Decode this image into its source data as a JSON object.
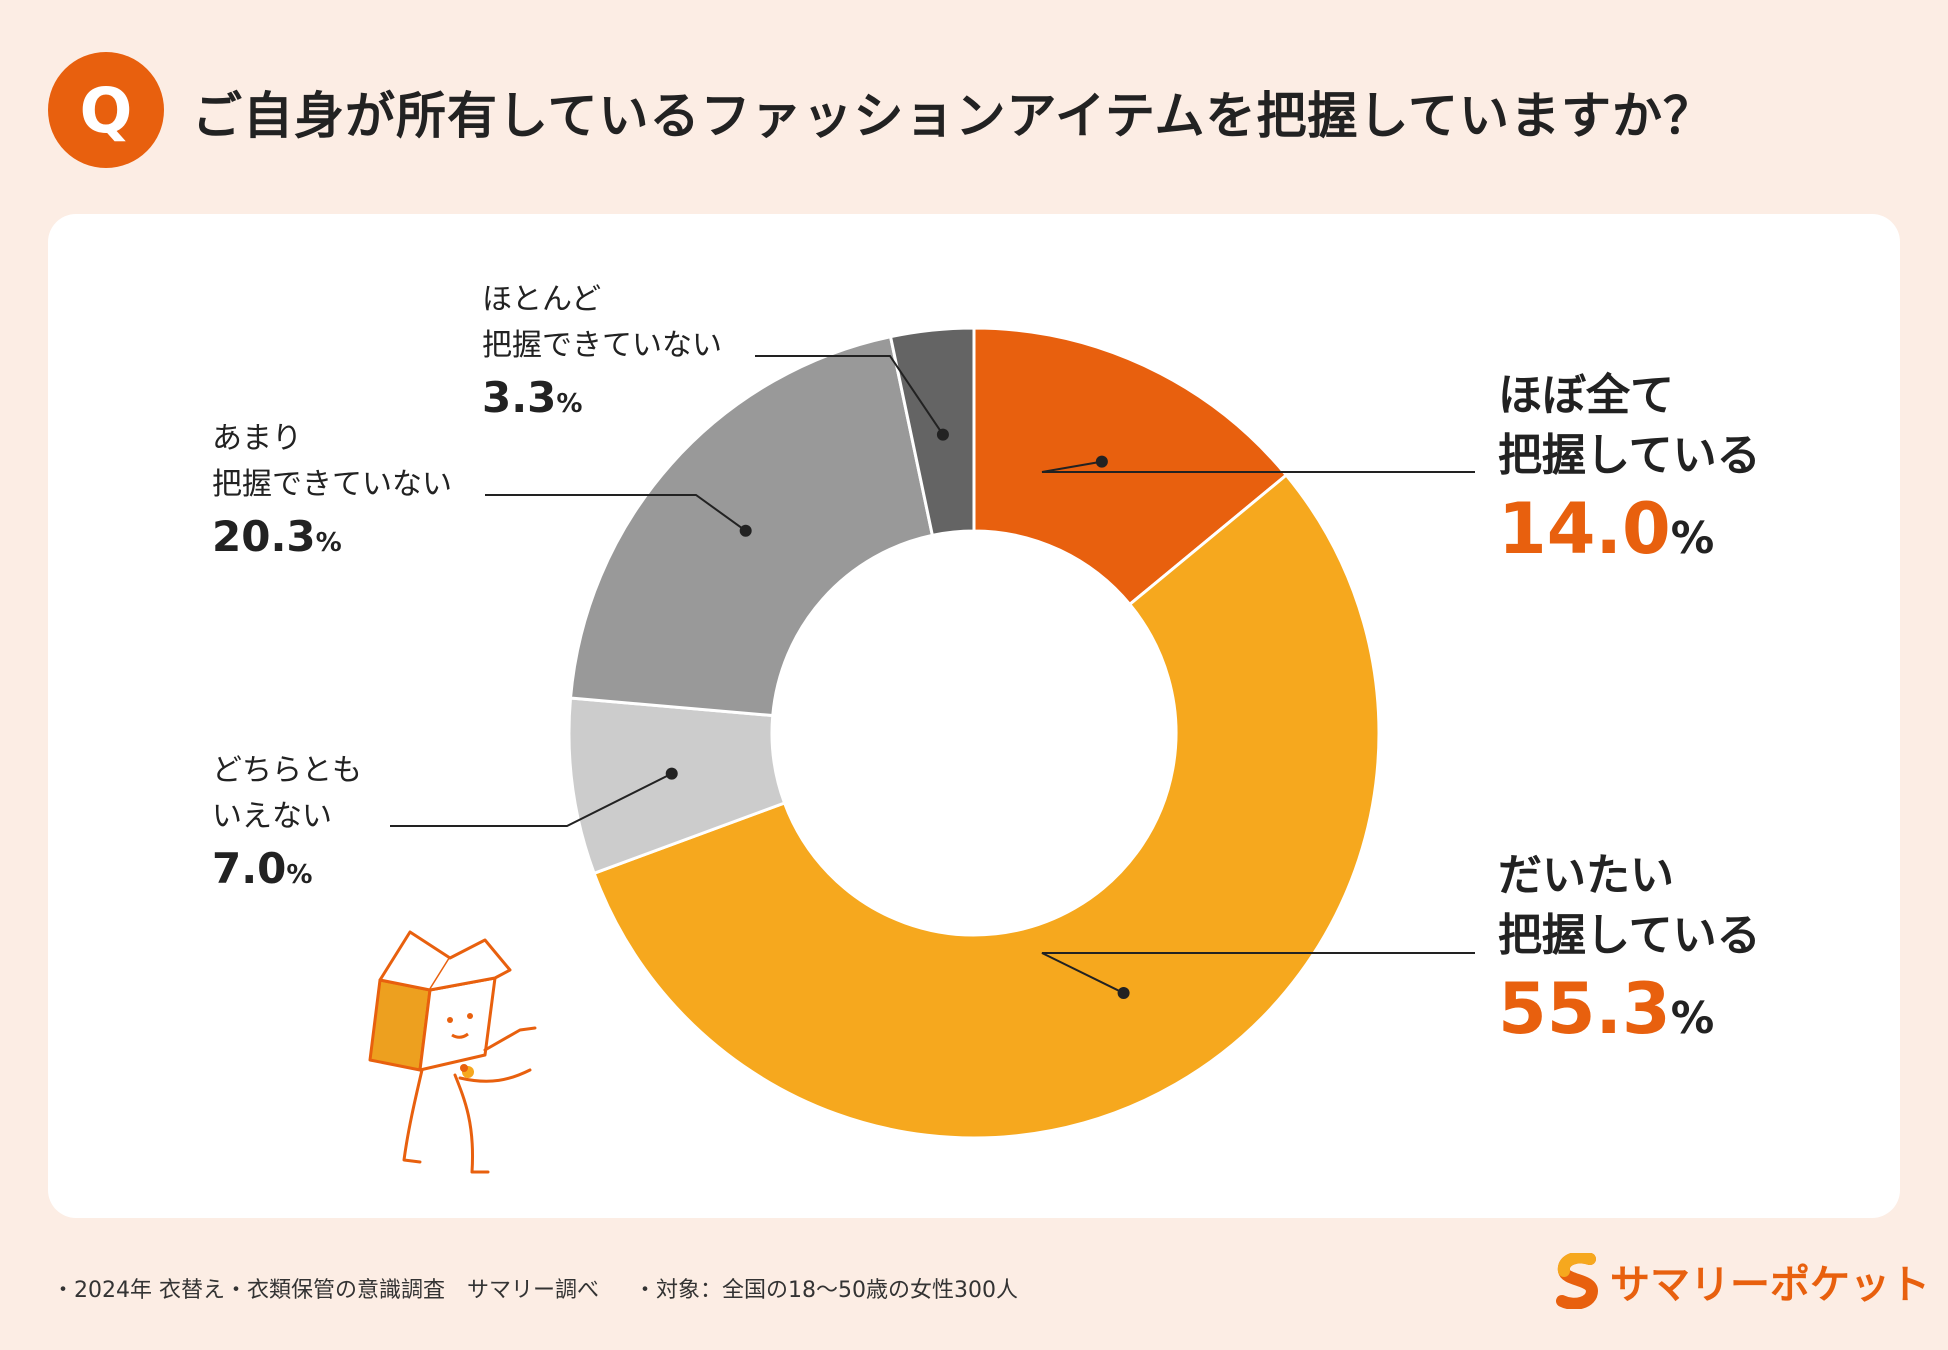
{
  "header": {
    "badge": "Q",
    "title": "ご自身が所有しているファッションアイテムを把握していますか？"
  },
  "colors": {
    "accent": "#e8600e",
    "background": "#fcede4"
  },
  "chart_data": {
    "type": "pie",
    "variant": "donut",
    "title": "ご自身が所有しているファッションアイテムを把握していますか？",
    "unit": "%",
    "slices": [
      {
        "label_lines": [
          "ほぼ全て",
          "把握している"
        ],
        "value": 14.0,
        "display": "14.0",
        "color": "#e8600e",
        "emphasis": true
      },
      {
        "label_lines": [
          "だいたい",
          "把握している"
        ],
        "value": 55.3,
        "display": "55.3",
        "color": "#f6a81e",
        "emphasis": true
      },
      {
        "label_lines": [
          "どちらとも",
          "いえない"
        ],
        "value": 7.0,
        "display": "7.0",
        "color": "#cccccc",
        "emphasis": false
      },
      {
        "label_lines": [
          "あまり",
          "把握できていない"
        ],
        "value": 20.3,
        "display": "20.3",
        "color": "#999999",
        "emphasis": false
      },
      {
        "label_lines": [
          "ほとんど",
          "把握できていない"
        ],
        "value": 3.3,
        "display": "3.3",
        "color": "#646464",
        "emphasis": false
      }
    ]
  },
  "footer": {
    "survey": "・2024年 衣替え・衣類保管の意識調査　サマリー調べ",
    "target": "・対象：全国の18〜50歳の女性300人"
  },
  "logo": {
    "text": "サマリーポケット",
    "icon": "summary-pocket-s-logo-icon"
  },
  "illustration": {
    "icon": "box-character-mascot-icon"
  }
}
